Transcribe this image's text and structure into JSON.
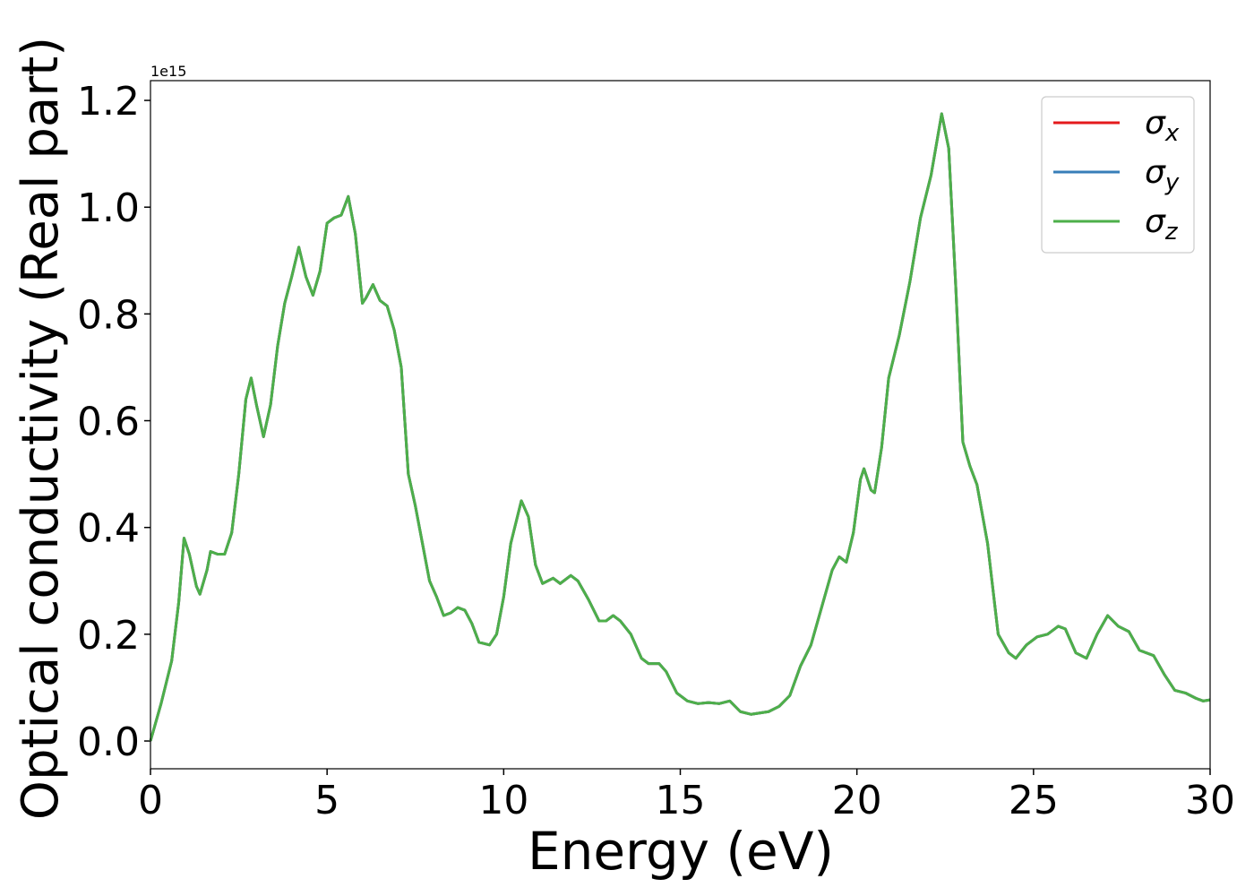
{
  "chart_data": {
    "type": "line",
    "xlabel": "Energy (eV)",
    "ylabel": "Optical conductivity (Real part)",
    "y_offset_text": "1e15",
    "x": [
      0,
      0.3,
      0.6,
      0.8,
      0.95,
      1.1,
      1.3,
      1.4,
      1.6,
      1.7,
      1.9,
      2.1,
      2.3,
      2.5,
      2.7,
      2.85,
      3.0,
      3.2,
      3.4,
      3.6,
      3.8,
      4.0,
      4.2,
      4.4,
      4.6,
      4.8,
      5.0,
      5.2,
      5.4,
      5.6,
      5.8,
      6.0,
      6.1,
      6.3,
      6.5,
      6.7,
      6.9,
      7.1,
      7.3,
      7.5,
      7.7,
      7.9,
      8.1,
      8.3,
      8.5,
      8.7,
      8.9,
      9.1,
      9.3,
      9.6,
      9.8,
      10.0,
      10.2,
      10.5,
      10.7,
      10.9,
      11.1,
      11.4,
      11.6,
      11.9,
      12.1,
      12.4,
      12.7,
      12.9,
      13.1,
      13.3,
      13.6,
      13.9,
      14.1,
      14.4,
      14.6,
      14.9,
      15.2,
      15.5,
      15.8,
      16.1,
      16.4,
      16.7,
      17.0,
      17.5,
      17.8,
      18.1,
      18.4,
      18.7,
      19.0,
      19.3,
      19.5,
      19.7,
      19.9,
      20.1,
      20.2,
      20.4,
      20.5,
      20.7,
      20.9,
      21.2,
      21.5,
      21.8,
      22.1,
      22.4,
      22.6,
      22.8,
      23.0,
      23.2,
      23.4,
      23.7,
      24.0,
      24.3,
      24.5,
      24.8,
      25.1,
      25.4,
      25.7,
      25.9,
      26.2,
      26.5,
      26.8,
      27.1,
      27.4,
      27.7,
      28.0,
      28.4,
      28.7,
      29.0,
      29.3,
      29.6,
      29.8,
      30.0
    ],
    "series": [
      {
        "name": "σx",
        "color": "#e41a1c",
        "values": [
          0,
          0.07,
          0.15,
          0.26,
          0.38,
          0.35,
          0.29,
          0.275,
          0.32,
          0.355,
          0.35,
          0.35,
          0.39,
          0.5,
          0.64,
          0.68,
          0.63,
          0.57,
          0.63,
          0.74,
          0.82,
          0.87,
          0.925,
          0.87,
          0.835,
          0.88,
          0.97,
          0.98,
          0.985,
          1.02,
          0.95,
          0.82,
          0.83,
          0.855,
          0.825,
          0.815,
          0.77,
          0.7,
          0.5,
          0.44,
          0.37,
          0.3,
          0.27,
          0.235,
          0.24,
          0.25,
          0.245,
          0.22,
          0.185,
          0.18,
          0.2,
          0.27,
          0.37,
          0.45,
          0.42,
          0.33,
          0.295,
          0.305,
          0.295,
          0.31,
          0.3,
          0.265,
          0.225,
          0.225,
          0.235,
          0.225,
          0.2,
          0.155,
          0.145,
          0.145,
          0.13,
          0.09,
          0.075,
          0.07,
          0.072,
          0.07,
          0.075,
          0.055,
          0.05,
          0.055,
          0.065,
          0.085,
          0.14,
          0.18,
          0.25,
          0.32,
          0.345,
          0.335,
          0.39,
          0.49,
          0.51,
          0.47,
          0.465,
          0.55,
          0.68,
          0.76,
          0.86,
          0.98,
          1.06,
          1.175,
          1.11,
          0.85,
          0.56,
          0.515,
          0.48,
          0.37,
          0.2,
          0.165,
          0.155,
          0.18,
          0.195,
          0.2,
          0.215,
          0.21,
          0.165,
          0.155,
          0.2,
          0.235,
          0.215,
          0.205,
          0.17,
          0.16,
          0.125,
          0.095,
          0.09,
          0.08,
          0.075,
          0.077
        ]
      },
      {
        "name": "σy",
        "color": "#377eb8",
        "values": [
          0,
          0.07,
          0.15,
          0.26,
          0.38,
          0.35,
          0.29,
          0.275,
          0.32,
          0.355,
          0.35,
          0.35,
          0.39,
          0.5,
          0.64,
          0.68,
          0.63,
          0.57,
          0.63,
          0.74,
          0.82,
          0.87,
          0.925,
          0.87,
          0.835,
          0.88,
          0.97,
          0.98,
          0.985,
          1.02,
          0.95,
          0.82,
          0.83,
          0.855,
          0.825,
          0.815,
          0.77,
          0.7,
          0.5,
          0.44,
          0.37,
          0.3,
          0.27,
          0.235,
          0.24,
          0.25,
          0.245,
          0.22,
          0.185,
          0.18,
          0.2,
          0.27,
          0.37,
          0.45,
          0.42,
          0.33,
          0.295,
          0.305,
          0.295,
          0.31,
          0.3,
          0.265,
          0.225,
          0.225,
          0.235,
          0.225,
          0.2,
          0.155,
          0.145,
          0.145,
          0.13,
          0.09,
          0.075,
          0.07,
          0.072,
          0.07,
          0.075,
          0.055,
          0.05,
          0.055,
          0.065,
          0.085,
          0.14,
          0.18,
          0.25,
          0.32,
          0.345,
          0.335,
          0.39,
          0.49,
          0.51,
          0.47,
          0.465,
          0.55,
          0.68,
          0.76,
          0.86,
          0.98,
          1.06,
          1.175,
          1.11,
          0.85,
          0.56,
          0.515,
          0.48,
          0.37,
          0.2,
          0.165,
          0.155,
          0.18,
          0.195,
          0.2,
          0.215,
          0.21,
          0.165,
          0.155,
          0.2,
          0.235,
          0.215,
          0.205,
          0.17,
          0.16,
          0.125,
          0.095,
          0.09,
          0.08,
          0.075,
          0.077
        ]
      },
      {
        "name": "σz",
        "color": "#4daf4a",
        "values": [
          0,
          0.07,
          0.15,
          0.26,
          0.38,
          0.35,
          0.29,
          0.275,
          0.32,
          0.355,
          0.35,
          0.35,
          0.39,
          0.5,
          0.64,
          0.68,
          0.63,
          0.57,
          0.63,
          0.74,
          0.82,
          0.87,
          0.925,
          0.87,
          0.835,
          0.88,
          0.97,
          0.98,
          0.985,
          1.02,
          0.95,
          0.82,
          0.83,
          0.855,
          0.825,
          0.815,
          0.77,
          0.7,
          0.5,
          0.44,
          0.37,
          0.3,
          0.27,
          0.235,
          0.24,
          0.25,
          0.245,
          0.22,
          0.185,
          0.18,
          0.2,
          0.27,
          0.37,
          0.45,
          0.42,
          0.33,
          0.295,
          0.305,
          0.295,
          0.31,
          0.3,
          0.265,
          0.225,
          0.225,
          0.235,
          0.225,
          0.2,
          0.155,
          0.145,
          0.145,
          0.13,
          0.09,
          0.075,
          0.07,
          0.072,
          0.07,
          0.075,
          0.055,
          0.05,
          0.055,
          0.065,
          0.085,
          0.14,
          0.18,
          0.25,
          0.32,
          0.345,
          0.335,
          0.39,
          0.49,
          0.51,
          0.47,
          0.465,
          0.55,
          0.68,
          0.76,
          0.86,
          0.98,
          1.06,
          1.175,
          1.11,
          0.85,
          0.56,
          0.515,
          0.48,
          0.37,
          0.2,
          0.165,
          0.155,
          0.18,
          0.195,
          0.2,
          0.215,
          0.21,
          0.165,
          0.155,
          0.2,
          0.235,
          0.215,
          0.205,
          0.17,
          0.16,
          0.125,
          0.095,
          0.09,
          0.08,
          0.075,
          0.077
        ]
      }
    ],
    "xlim": [
      0,
      30
    ],
    "xticks": [
      0,
      5,
      10,
      15,
      20,
      25,
      30
    ],
    "ylim": [
      -0.052,
      1.237
    ],
    "yticks": [
      {
        "value": 0,
        "label": "0.0"
      },
      0.2,
      0.4,
      0.6,
      0.8,
      {
        "value": 1,
        "label": "1.0"
      },
      1.2
    ],
    "grid": false,
    "legend": "upper right"
  }
}
